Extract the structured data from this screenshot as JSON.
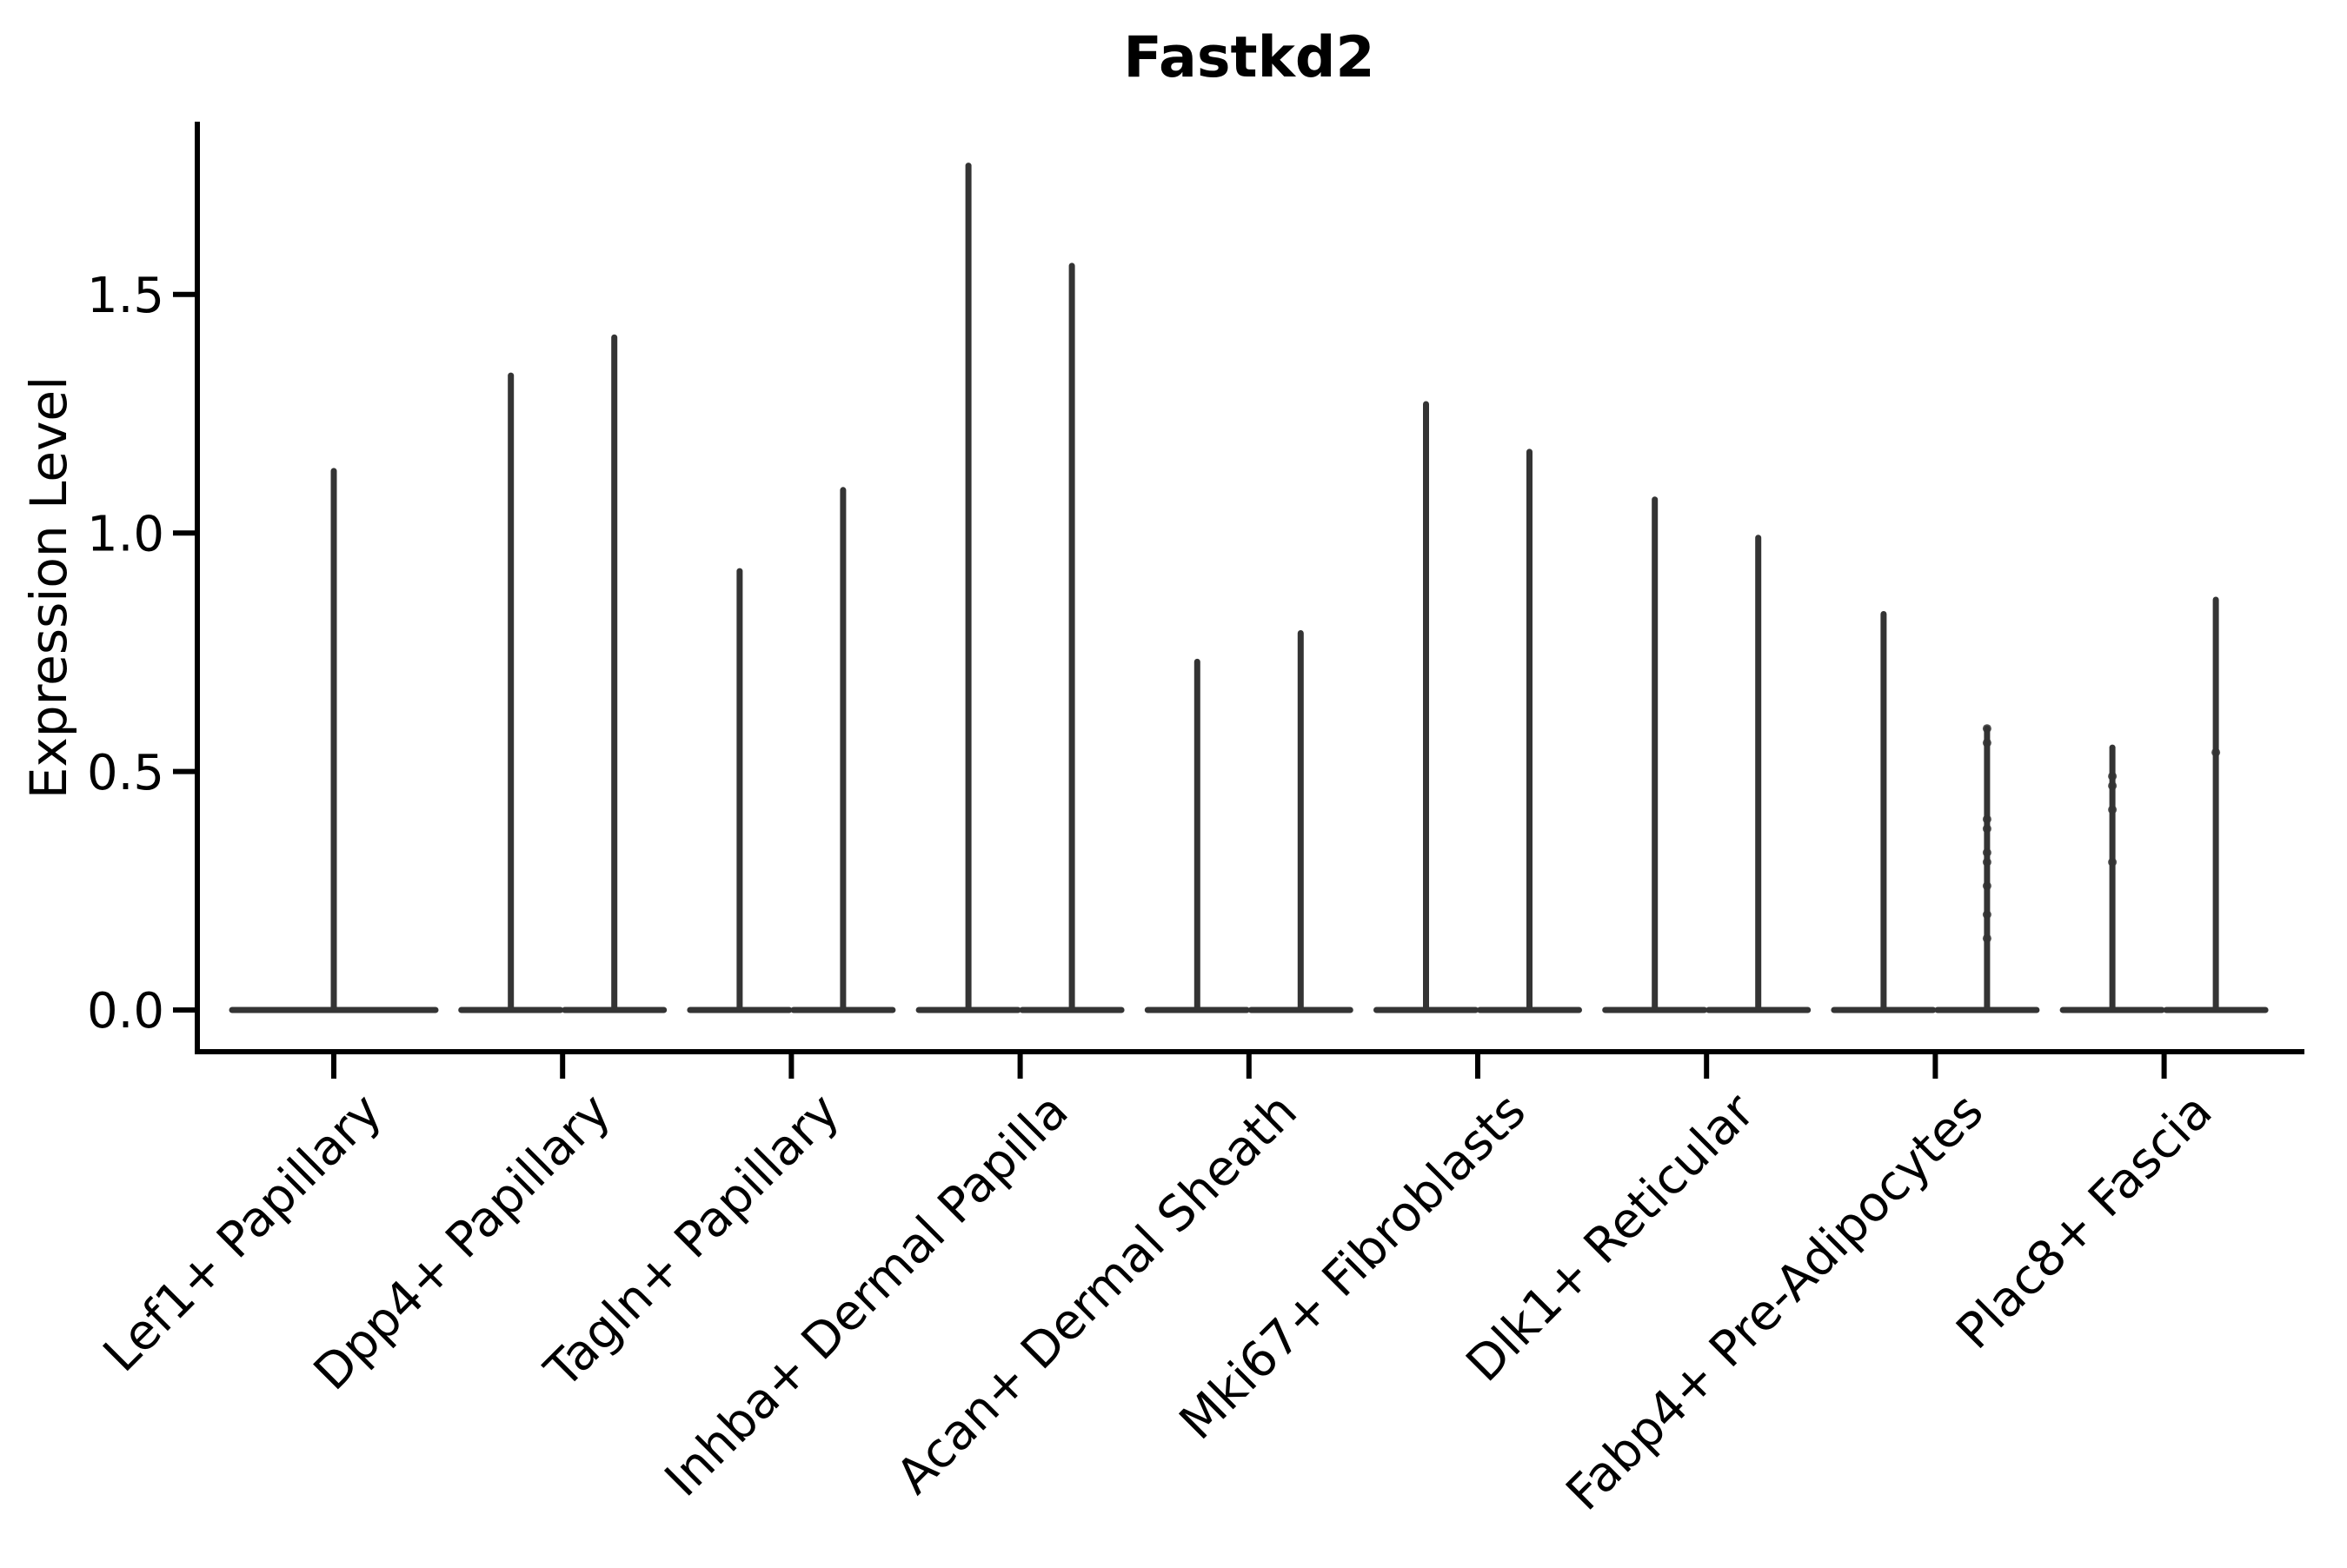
{
  "chart_data": {
    "type": "violin",
    "title": "Fastkd2",
    "ylabel": "Expression Level",
    "xlabel": "",
    "yticks": [
      0.0,
      0.5,
      1.0,
      1.5
    ],
    "ylim": [
      -0.09,
      1.86
    ],
    "grid": false,
    "legend": null,
    "violin_color": "#343434",
    "axis_color": "#000000",
    "x_tick_rotation_deg": 45,
    "note": "Seurat-style stacked violin: each cluster shows 1-2 very bottom-heavy violins (wide flat base at 0, thin spike to max expression); dots are jittered expressing cells",
    "categories": [
      {
        "label": "Lef1+ Papillary",
        "violins": [
          {
            "max": 1.13,
            "span": "full",
            "points": []
          }
        ]
      },
      {
        "label": "Dpp4+ Papillary",
        "violins": [
          {
            "max": 1.33,
            "points": []
          },
          {
            "max": 1.41,
            "points": []
          }
        ]
      },
      {
        "label": "Tagln+ Papillary",
        "violins": [
          {
            "max": 0.92,
            "points": []
          },
          {
            "max": 1.09,
            "points": []
          }
        ]
      },
      {
        "label": "Inhba+ Dermal Papilla",
        "violins": [
          {
            "max": 1.77,
            "points": []
          },
          {
            "max": 1.56,
            "points": []
          }
        ]
      },
      {
        "label": "Acan+ Dermal Sheath",
        "violins": [
          {
            "max": 0.73,
            "points": []
          },
          {
            "max": 0.79,
            "points": []
          }
        ]
      },
      {
        "label": "Mki67+ Fibroblasts",
        "violins": [
          {
            "max": 1.27,
            "points": []
          },
          {
            "max": 1.17,
            "points": []
          }
        ]
      },
      {
        "label": "Dlk1+ Reticular",
        "violins": [
          {
            "max": 1.07,
            "points": []
          },
          {
            "max": 0.99,
            "points": []
          }
        ]
      },
      {
        "label": "Fabp4+ Pre-Adipocytes",
        "violins": [
          {
            "max": 0.83,
            "points": []
          },
          {
            "max": 0.59,
            "points": [
              0.59,
              0.56,
              0.4,
              0.38,
              0.33,
              0.31,
              0.26,
              0.2,
              0.15
            ]
          }
        ]
      },
      {
        "label": "Plac8+ Fascia",
        "violins": [
          {
            "max": 0.55,
            "points": [
              0.49,
              0.47,
              0.42,
              0.31
            ]
          },
          {
            "max": 0.86,
            "points": [
              0.54
            ]
          }
        ]
      }
    ]
  }
}
